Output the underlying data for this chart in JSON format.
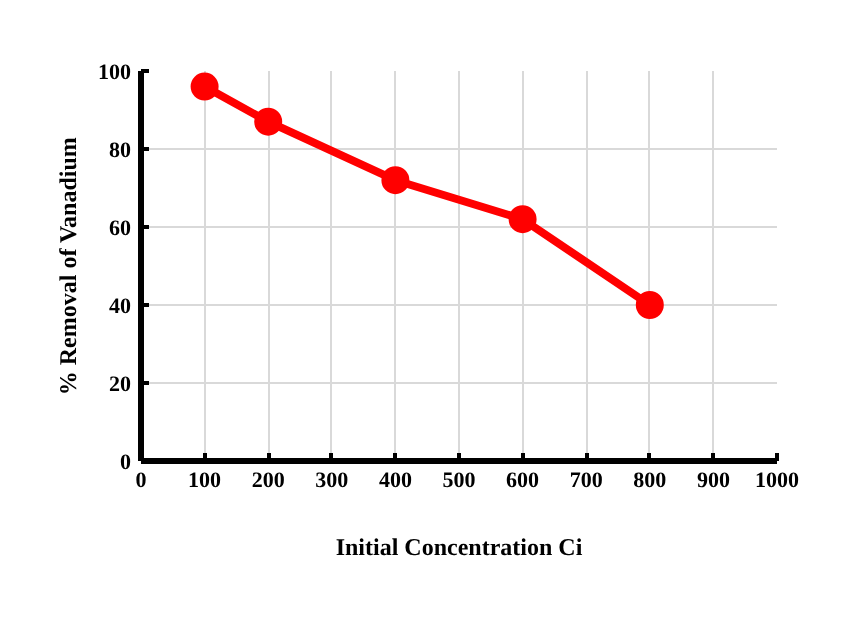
{
  "chart_data": {
    "type": "line",
    "xlabel": "Initial Concentration Ci",
    "ylabel": "% Removal of Vanadium",
    "x": [
      100,
      200,
      400,
      600,
      800
    ],
    "series": [
      {
        "color": "#ff0000",
        "values": [
          96,
          87,
          72,
          62,
          40
        ]
      }
    ],
    "xlim": [
      0,
      1000
    ],
    "xticks": [
      0,
      100,
      200,
      300,
      400,
      500,
      600,
      700,
      800,
      900,
      1000
    ],
    "ylim": [
      0,
      100
    ],
    "yticks": [
      0,
      20,
      40,
      60,
      80,
      100
    ],
    "grid": true,
    "marker": "circle",
    "line_style": "solid"
  }
}
